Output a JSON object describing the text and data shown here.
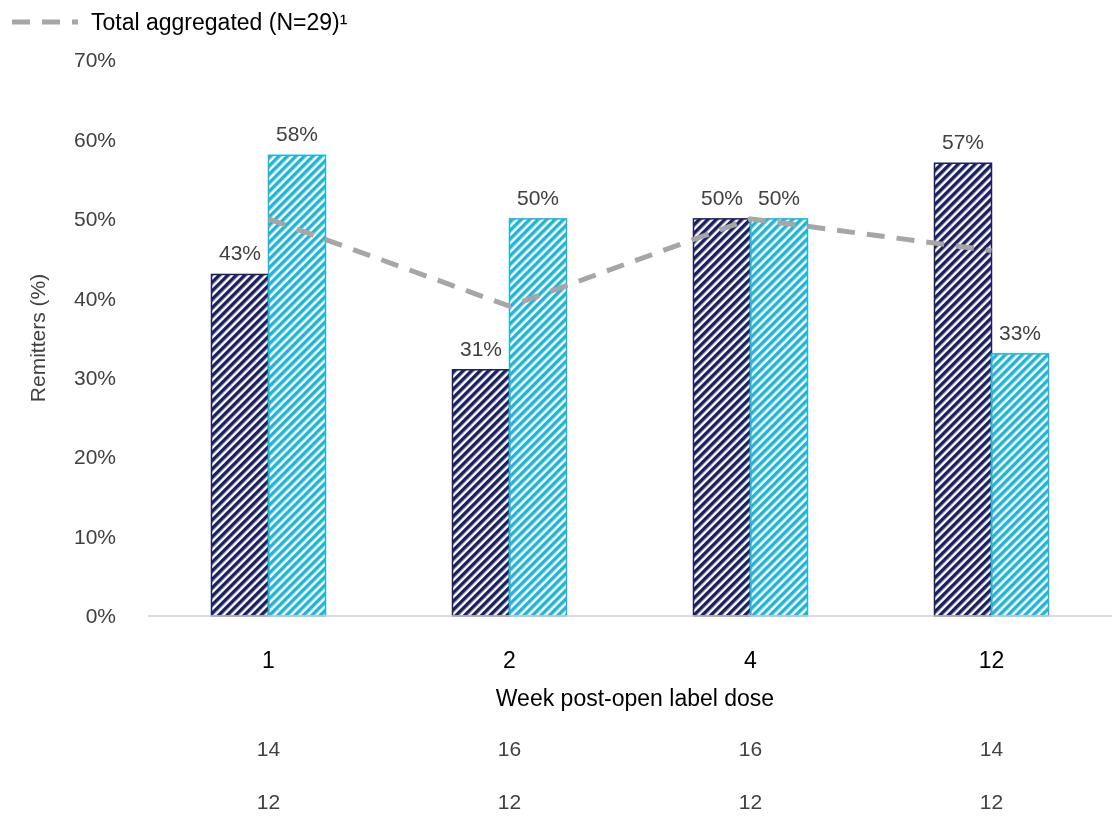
{
  "chart_data": {
    "type": "bar",
    "xlabel": "Week post-open label dose",
    "ylabel": "Remitters (%)",
    "categories": [
      "1",
      "2",
      "4",
      "12"
    ],
    "series": [
      {
        "color": "#1b2160",
        "values": [
          43,
          31,
          50,
          57
        ],
        "value_labels": [
          "43%",
          "31%",
          "50%",
          "57%"
        ]
      },
      {
        "color": "#1fb5d6",
        "values": [
          58,
          50,
          50,
          33
        ],
        "value_labels": [
          "58%",
          "50%",
          "50%",
          "33%"
        ]
      },
      {
        "type": "line",
        "name": "Total aggregated (N=29)¹",
        "color": "#a6a6a6",
        "values": [
          50,
          39,
          50,
          46
        ],
        "line_style": "dashed"
      }
    ],
    "ylim": [
      0,
      70
    ],
    "yticks": [
      {
        "value": 0,
        "label": "0%"
      },
      {
        "value": 10,
        "label": "10%"
      },
      {
        "value": 20,
        "label": "20%"
      },
      {
        "value": 30,
        "label": "30%"
      },
      {
        "value": 40,
        "label": "40%"
      },
      {
        "value": 50,
        "label": "50%"
      },
      {
        "value": 60,
        "label": "60%"
      },
      {
        "value": 70,
        "label": "70%"
      }
    ],
    "legend": "top left",
    "grid": false,
    "marker": "none",
    "annotations": [
      "14",
      "16",
      "16",
      "14",
      "12",
      "12",
      "12",
      "12"
    ]
  }
}
